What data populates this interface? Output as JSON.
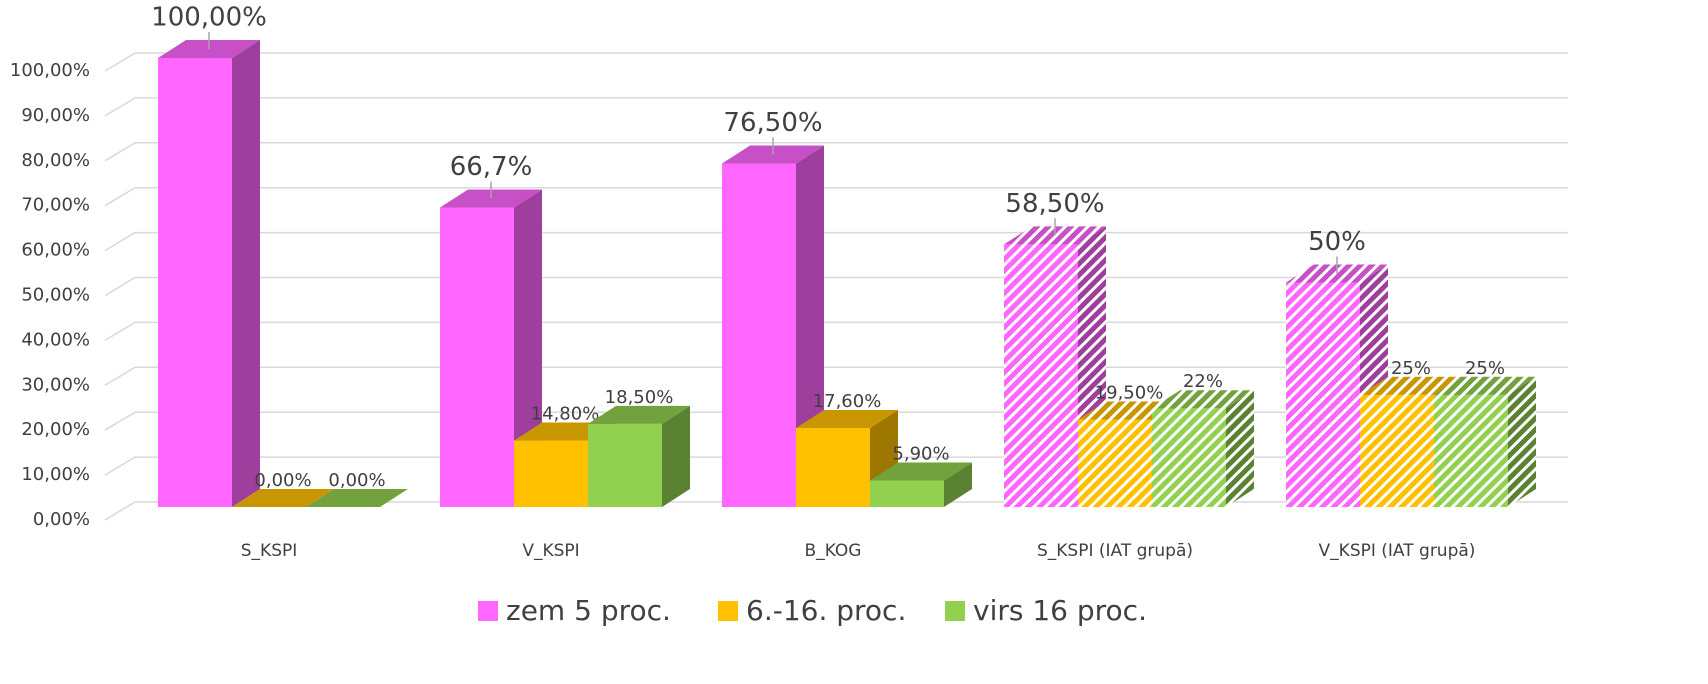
{
  "chart_data": {
    "type": "bar3d",
    "categories": [
      "S_KSPI",
      "V_KSPI",
      "B_KOG",
      "S_KSPI (IAT grupā)",
      "V_KSPI (IAT grupā)"
    ],
    "hatched": [
      false,
      false,
      false,
      true,
      true
    ],
    "series": [
      {
        "name": "zem 5 proc.",
        "color": "#ff66ff",
        "values": [
          100,
          66.7,
          76.5,
          58.5,
          50
        ],
        "value_labels": [
          "100,00%",
          "66,7%",
          "76,50%",
          "58,50%",
          "50%"
        ]
      },
      {
        "name": "6.-16. proc.",
        "color": "#ffc000",
        "values": [
          0,
          14.8,
          17.6,
          19.5,
          25
        ],
        "value_labels": [
          "0,00%",
          "14,80%",
          "17,60%",
          "19,50%",
          "25%"
        ]
      },
      {
        "name": "virs 16 proc.",
        "color": "#92d050",
        "values": [
          0,
          18.5,
          5.9,
          22,
          25
        ],
        "value_labels": [
          "0,00%",
          "18,50%",
          "5,90%",
          "22%",
          "25%"
        ]
      }
    ],
    "ylim": [
      0,
      100
    ],
    "yticks": [
      {
        "value": 0,
        "label": "0,00%"
      },
      {
        "value": 10,
        "label": "10,00%"
      },
      {
        "value": 20,
        "label": "20,00%"
      },
      {
        "value": 30,
        "label": "30,00%"
      },
      {
        "value": 40,
        "label": "40,00%"
      },
      {
        "value": 50,
        "label": "50,00%"
      },
      {
        "value": 60,
        "label": "60,00%"
      },
      {
        "value": 70,
        "label": "70,00%"
      },
      {
        "value": 80,
        "label": "80,00%"
      },
      {
        "value": 90,
        "label": "90,00%"
      },
      {
        "value": 100,
        "label": "100,00%"
      }
    ],
    "grid": true,
    "legend": "bottom"
  }
}
